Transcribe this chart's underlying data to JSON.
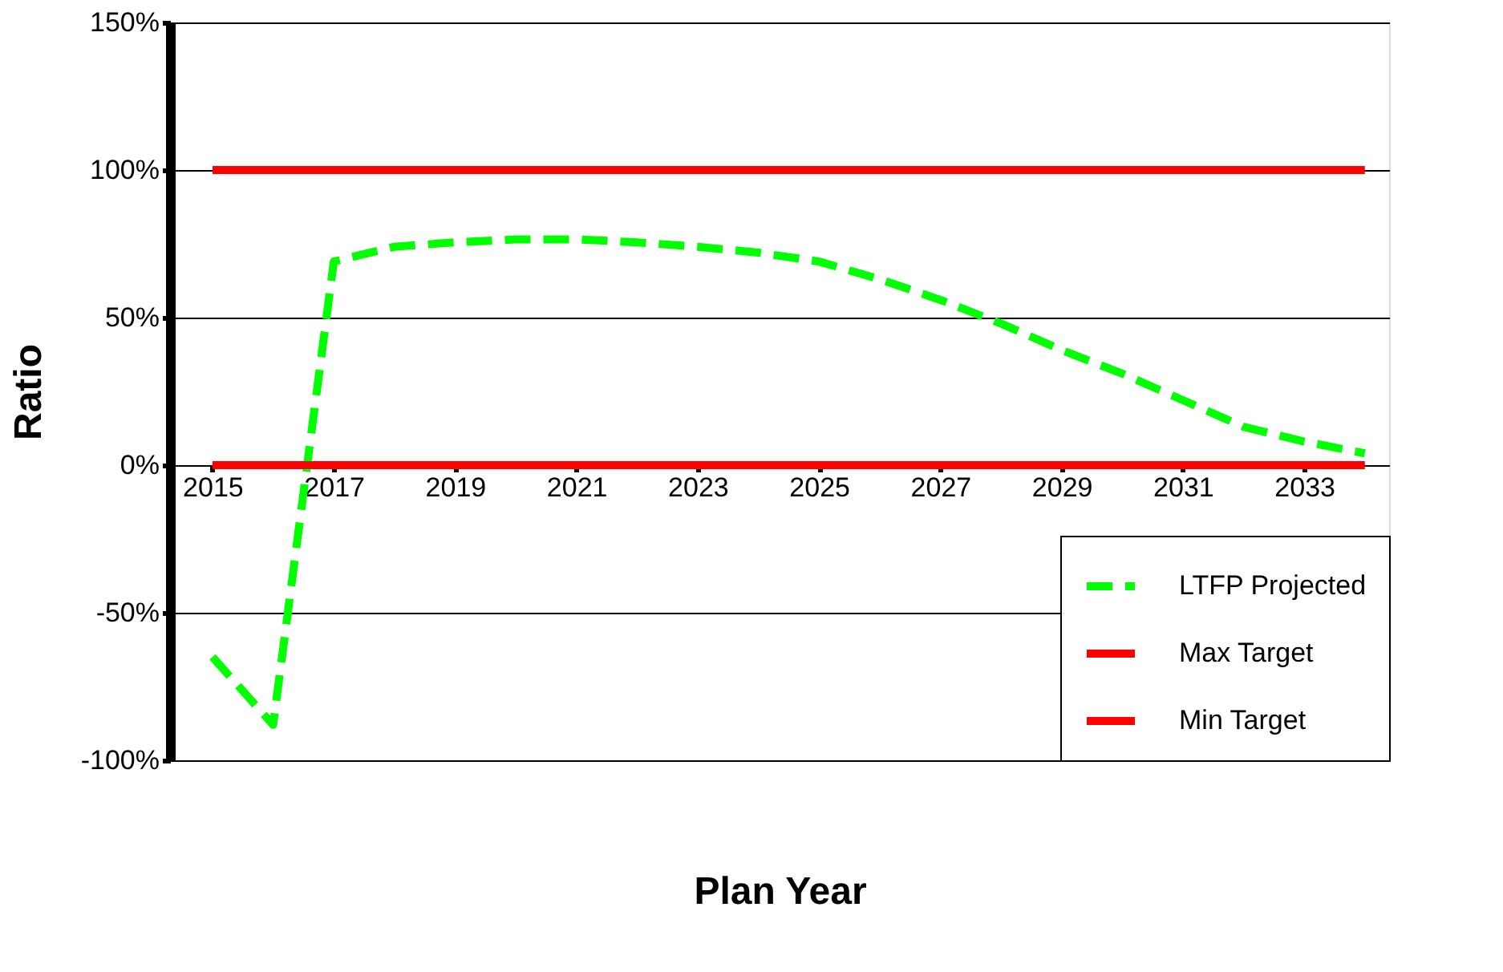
{
  "chart_data": {
    "type": "line",
    "xlabel": "Plan Year",
    "ylabel": "Ratio",
    "x": [
      2015,
      2016,
      2017,
      2018,
      2019,
      2020,
      2021,
      2022,
      2023,
      2024,
      2025,
      2026,
      2027,
      2028,
      2029,
      2030,
      2031,
      2032,
      2033,
      2034
    ],
    "series": [
      {
        "name": "LTFP Projected",
        "color": "#00ff00",
        "line_style": "dashed",
        "values": [
          -65,
          -88,
          69,
          74,
          75.5,
          76.5,
          76.5,
          75.5,
          74,
          72,
          69,
          63,
          56,
          48,
          39,
          31,
          22,
          13,
          8,
          4
        ]
      },
      {
        "name": "Max Target",
        "color": "#ff0000",
        "line_style": "solid",
        "values": [
          100,
          100,
          100,
          100,
          100,
          100,
          100,
          100,
          100,
          100,
          100,
          100,
          100,
          100,
          100,
          100,
          100,
          100,
          100,
          100
        ]
      },
      {
        "name": "Min Target",
        "color": "#ff0000",
        "line_style": "solid",
        "values": [
          0,
          0,
          0,
          0,
          0,
          0,
          0,
          0,
          0,
          0,
          0,
          0,
          0,
          0,
          0,
          0,
          0,
          0,
          0,
          0
        ]
      }
    ],
    "xlim": [
      2014.3,
      2034.4
    ],
    "xticks": [
      2015,
      2017,
      2019,
      2021,
      2023,
      2025,
      2027,
      2029,
      2031,
      2033
    ],
    "ylim": [
      -100,
      150
    ],
    "yticks": [
      {
        "value": -100,
        "label": "-100%"
      },
      {
        "value": -50,
        "label": "-50%"
      },
      {
        "value": 0,
        "label": "0%"
      },
      {
        "value": 50,
        "label": "50%"
      },
      {
        "value": 100,
        "label": "100%"
      },
      {
        "value": 150,
        "label": "150%"
      }
    ],
    "grid": "y",
    "legend": "bottom right"
  }
}
